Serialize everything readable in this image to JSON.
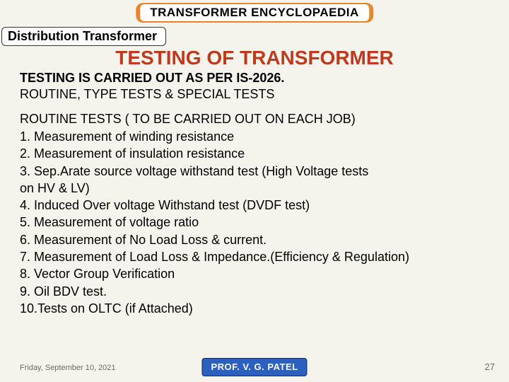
{
  "header": {
    "banner": "TRANSFORMER ENCYCLOPAEDIA",
    "subtitle": "Distribution Transformer"
  },
  "title": "TESTING OF TRANSFORMER",
  "intro": {
    "line1": "TESTING IS CARRIED OUT AS PER IS-2026.",
    "line2": "ROUTINE, TYPE TESTS & SPECIAL TESTS"
  },
  "section": {
    "heading": "ROUTINE TESTS ( TO BE CARRIED OUT ON EACH JOB)",
    "items": {
      "i1": "1.  Measurement of winding resistance",
      "i2": "2.  Measurement of insulation resistance",
      "i3a": "3.   Sep.Arate source voltage withstand test (High Voltage tests",
      "i3b": "on HV & LV)",
      "i4": "4.  Induced Over voltage Withstand test (DVDF test)",
      "i5": "5.  Measurement of voltage ratio",
      "i6": "6.  Measurement of No Load Loss & current.",
      "i7": "7.  Measurement of Load Loss & Impedance.(Efficiency & Regulation)",
      "i8": "8.  Vector Group Verification",
      "i9": "9.  Oil BDV test.",
      "i10": "10.Tests on OLTC (if Attached)"
    }
  },
  "footer": {
    "date": "Friday, September 10, 2021",
    "author": "PROF. V. G. PATEL",
    "page": "27"
  },
  "colors": {
    "background": "#f4f4ec",
    "accent_orange": "#e8872a",
    "title_red": "#bd3a1e",
    "badge_blue": "#2b5fc0"
  }
}
